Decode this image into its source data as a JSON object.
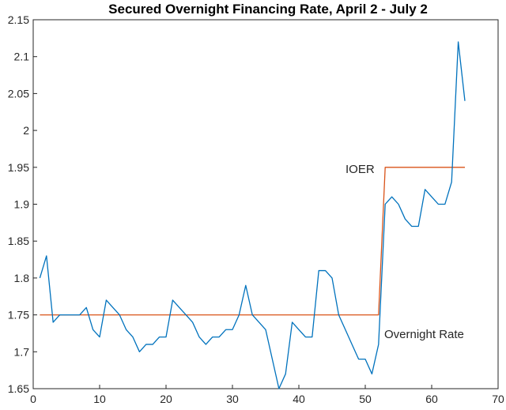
{
  "chart_data": {
    "type": "line",
    "title": "Secured Overnight Financing Rate, April 2 - July 2",
    "xlabel": "",
    "ylabel": "",
    "xlim": [
      0,
      70
    ],
    "ylim": [
      1.65,
      2.15
    ],
    "xticks": [
      "0",
      "10",
      "20",
      "30",
      "40",
      "50",
      "60",
      "70"
    ],
    "yticks": [
      "1.65",
      "1.7",
      "1.75",
      "1.8",
      "1.85",
      "1.9",
      "1.95",
      "2",
      "2.05",
      "2.1",
      "2.15"
    ],
    "grid": false,
    "series": [
      {
        "name": "Overnight Rate",
        "color": "#0072bd",
        "x": [
          1,
          2,
          3,
          4,
          5,
          6,
          7,
          8,
          9,
          10,
          11,
          12,
          13,
          14,
          15,
          16,
          17,
          18,
          19,
          20,
          21,
          22,
          23,
          24,
          25,
          26,
          27,
          28,
          29,
          30,
          31,
          32,
          33,
          34,
          35,
          36,
          37,
          38,
          39,
          40,
          41,
          42,
          43,
          44,
          45,
          46,
          47,
          48,
          49,
          50,
          51,
          52,
          53,
          54,
          55,
          56,
          57,
          58,
          59,
          60,
          61,
          62,
          63,
          64,
          65
        ],
        "values": [
          1.8,
          1.83,
          1.74,
          1.75,
          1.75,
          1.75,
          1.75,
          1.76,
          1.73,
          1.72,
          1.77,
          1.76,
          1.75,
          1.73,
          1.72,
          1.7,
          1.71,
          1.71,
          1.72,
          1.72,
          1.77,
          1.76,
          1.75,
          1.74,
          1.72,
          1.71,
          1.72,
          1.72,
          1.73,
          1.73,
          1.75,
          1.79,
          1.75,
          1.74,
          1.73,
          1.69,
          1.65,
          1.67,
          1.74,
          1.73,
          1.72,
          1.72,
          1.81,
          1.81,
          1.8,
          1.75,
          1.73,
          1.71,
          1.69,
          1.69,
          1.67,
          1.71,
          1.9,
          1.91,
          1.9,
          1.88,
          1.87,
          1.87,
          1.92,
          1.91,
          1.9,
          1.9,
          1.93,
          2.12,
          2.04
        ]
      },
      {
        "name": "IOER",
        "color": "#d95319",
        "x": [
          1,
          52,
          53,
          65
        ],
        "values": [
          1.75,
          1.75,
          1.95,
          1.95
        ]
      }
    ],
    "annotations": {
      "ioer": "IOER",
      "overnight": "Overnight Rate"
    }
  }
}
